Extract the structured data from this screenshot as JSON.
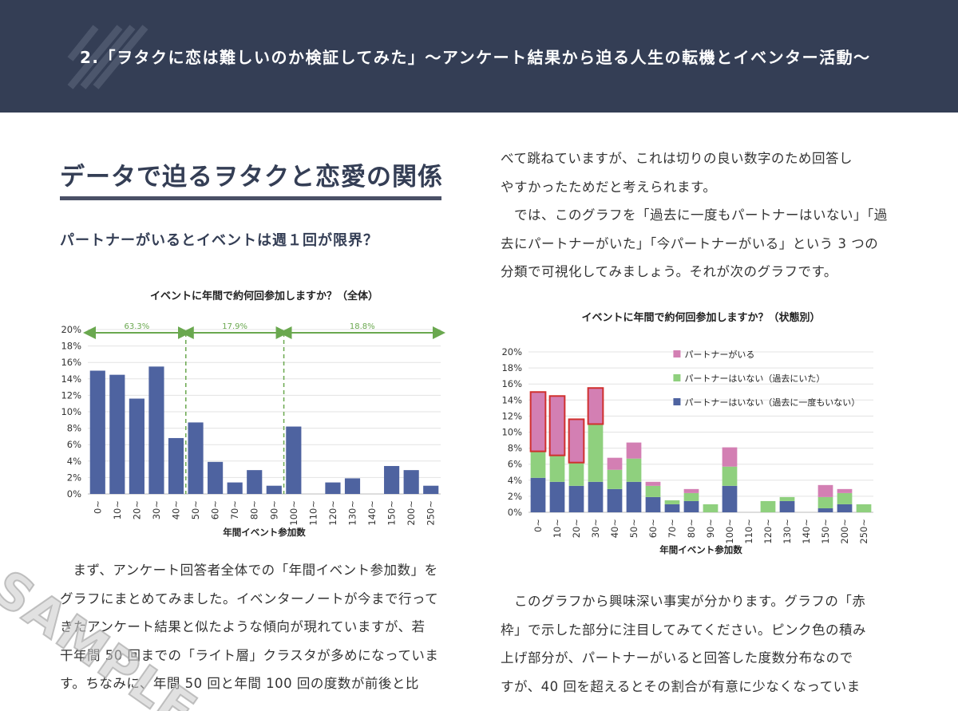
{
  "header": {
    "title": "2.「ヲタクに恋は難しいのか検証してみた」〜アンケート結果から迫る人生の転機とイベンター活動〜"
  },
  "section": {
    "heading": "データで迫るヲタクと恋愛の関係",
    "subheading": "パートナーがいるとイベントは週１回が限界？"
  },
  "left_text": [
    "まず、アンケート回答者全体での「年間イベント参加数」を",
    "グラフにまとめてみました。イベンターノートが今まで行って",
    "きたアンケート結果と似たような傾向が現れていますが、若",
    "干年間 50 回までの「ライト層」クラスタが多めになっていま",
    "す。ちなみに、年間 50 回と年間 100 回の度数が前後と比"
  ],
  "right_text_top": [
    "べて跳ねていますが、これは切りの良い数字のため回答し",
    "やすかったためだと考えられます。",
    "　では、このグラフを「過去に一度もパートナーはいない」「過",
    "去にパートナーがいた」「今パートナーがいる」という 3 つの",
    "分類で可視化してみましょう。それが次のグラフです。"
  ],
  "right_text_bottom": [
    "　このグラフから興味深い事実が分かります。グラフの「赤",
    "枠」で示した部分に注目してみてください。ピンク色の積み",
    "上げ部分が、パートナーがいると回答した度数分布なので",
    "すが、40 回を超えるとその割合が有意に少なくなっていま"
  ],
  "watermark": "SAMPLE",
  "colors": {
    "header_bg": "#343e55",
    "bar_blue": "#4e63a0",
    "bar_green": "#8fd07e",
    "bar_pink": "#d37fb3",
    "highlight_red": "#d0302e",
    "range_arrow": "#6aa84f"
  },
  "chart_data": [
    {
      "type": "bar",
      "title": "イベントに年間で約何回参加しますか？（全体）",
      "xlabel": "年間イベント参加数",
      "ylabel": "",
      "categories": [
        "0~",
        "10~",
        "20~",
        "30~",
        "40~",
        "50~",
        "60~",
        "70~",
        "80~",
        "90~",
        "100~",
        "110~",
        "120~",
        "130~",
        "140~",
        "150~",
        "200~",
        "250~"
      ],
      "values": [
        15.0,
        14.5,
        11.6,
        15.5,
        6.8,
        8.7,
        3.9,
        1.4,
        2.9,
        1.0,
        8.2,
        0,
        1.4,
        1.9,
        0,
        3.4,
        2.9,
        1.0
      ],
      "ylim": [
        0,
        20
      ],
      "yticks": [
        "0%",
        "2%",
        "4%",
        "6%",
        "8%",
        "10%",
        "12%",
        "14%",
        "16%",
        "18%",
        "20%"
      ],
      "ranges": [
        {
          "label": "63.3%",
          "from": 0,
          "to": 5
        },
        {
          "label": "17.9%",
          "from": 5,
          "to": 10
        },
        {
          "label": "18.8%",
          "from": 10,
          "to": 18
        }
      ],
      "grid": true
    },
    {
      "type": "bar",
      "stacked": true,
      "title": "イベントに年間で約何回参加しますか？（状態別）",
      "xlabel": "年間イベント参加数",
      "ylabel": "",
      "categories": [
        "0~",
        "10~",
        "20~",
        "30~",
        "40~",
        "50~",
        "60~",
        "70~",
        "80~",
        "90~",
        "100~",
        "110~",
        "120~",
        "130~",
        "140~",
        "150~",
        "200~",
        "250~"
      ],
      "series": [
        {
          "name": "パートナーはいない（過去に一度もいない）",
          "color": "#4e63a0",
          "values": [
            4.3,
            3.8,
            3.3,
            3.8,
            2.9,
            3.8,
            1.9,
            1.0,
            1.4,
            0,
            3.3,
            0,
            0,
            1.4,
            0,
            0.5,
            1.0,
            0
          ]
        },
        {
          "name": "パートナーはいない（過去にいた）",
          "color": "#8fd07e",
          "values": [
            3.3,
            3.3,
            2.9,
            7.2,
            2.4,
            2.9,
            1.4,
            0.5,
            1.0,
            1.0,
            2.4,
            0,
            1.4,
            0.5,
            0,
            1.4,
            1.4,
            1.0
          ]
        },
        {
          "name": "パートナーがいる",
          "color": "#d37fb3",
          "values": [
            7.4,
            7.4,
            5.4,
            4.5,
            1.5,
            2.0,
            0.5,
            0,
            0.5,
            0,
            2.4,
            0,
            0,
            0,
            0,
            1.5,
            0.5,
            0
          ]
        }
      ],
      "highlighted": [
        "0~",
        "10~",
        "20~",
        "30~"
      ],
      "ylim": [
        0,
        20
      ],
      "yticks": [
        "0%",
        "2%",
        "4%",
        "6%",
        "8%",
        "10%",
        "12%",
        "14%",
        "16%",
        "18%",
        "20%"
      ],
      "legend": "top-right",
      "grid": true
    }
  ]
}
